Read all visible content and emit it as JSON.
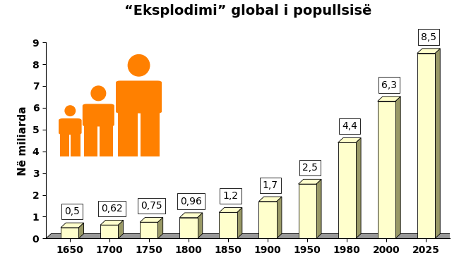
{
  "chart_data": {
    "type": "bar",
    "title": "“Eksplodimi” global i popullsisë",
    "y_label": "Në miliarda",
    "categories": [
      "1650",
      "1700",
      "1750",
      "1800",
      "1850",
      "1900",
      "1950",
      "1980",
      "2000",
      "2025"
    ],
    "values": [
      0.5,
      0.62,
      0.75,
      0.96,
      1.2,
      1.7,
      2.5,
      4.4,
      6.3,
      8.5
    ],
    "value_labels": [
      "0,5",
      "0,62",
      "0,75",
      "0,96",
      "1,2",
      "1,7",
      "2,5",
      "4,4",
      "6,3",
      "8,5"
    ],
    "data_labels": true,
    "color": "#ffffcc",
    "ylim": [
      0,
      9
    ],
    "yticks": [
      0,
      1,
      2,
      3,
      4,
      5,
      6,
      7,
      8,
      9
    ],
    "grid": false
  }
}
